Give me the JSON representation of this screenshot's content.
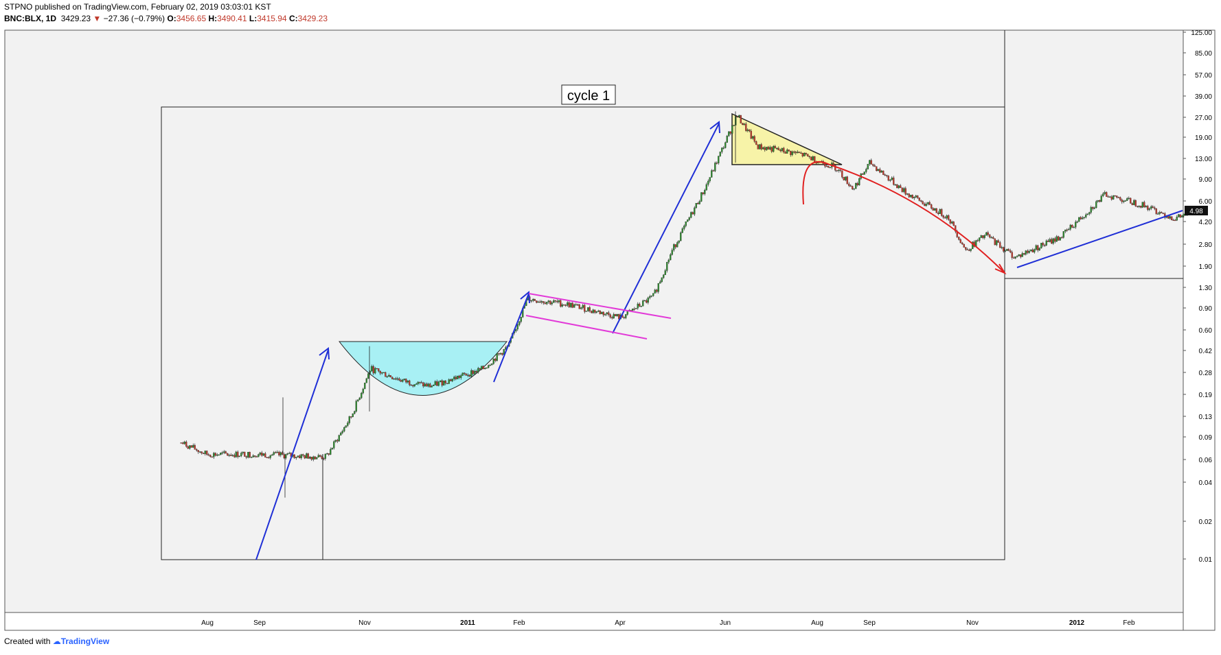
{
  "header": {
    "publisher": "STPNO published on TradingView.com, February 02, 2019 03:03:01 KST",
    "symbol": "BNC:BLX, 1D",
    "last": "3429.23",
    "change": "−27.36 (−0.79%)",
    "o_label": "O:",
    "o_value": "3456.65",
    "h_label": "H:",
    "h_value": "3490.41",
    "l_label": "L:",
    "l_value": "3415.94",
    "c_label": "C:",
    "c_value": "3429.23"
  },
  "footer": {
    "created_with": "Created with",
    "brand": "TradingView"
  },
  "colors": {
    "up_candle": "#2e8b2e",
    "down_candle": "#c0392b",
    "cup_fill": "#a8f0f4",
    "triangle_fill": "#f7f3a8",
    "arrow_blue": "#1f2fd6",
    "flag_magenta": "#e23ad8",
    "decline_red": "#e02020"
  },
  "chart_data": {
    "type": "candlestick",
    "y_scale": "log",
    "y_ticks": [
      "125.00",
      "85.00",
      "57.00",
      "39.00",
      "27.00",
      "19.00",
      "13.00",
      "9.00",
      "6.00",
      "4.20",
      "2.80",
      "1.90",
      "1.30",
      "0.90",
      "0.60",
      "0.42",
      "0.28",
      "0.19",
      "0.13",
      "0.09",
      "0.06",
      "0.04",
      "0.02",
      "0.01"
    ],
    "x_ticks": [
      "Aug",
      "Sep",
      "Nov",
      "2011",
      "Feb",
      "Apr",
      "Jun",
      "Aug",
      "Sep",
      "Nov",
      "2012",
      "Feb"
    ],
    "last_price_label": "4.98",
    "annotation": "cycle 1",
    "approx_price_path": [
      [
        "2010-07-17",
        0.08
      ],
      [
        "2010-08-01",
        0.065
      ],
      [
        "2010-09-01",
        0.065
      ],
      [
        "2010-10-10",
        0.062
      ],
      [
        "2010-10-25",
        0.13
      ],
      [
        "2010-11-05",
        0.3
      ],
      [
        "2010-11-25",
        0.24
      ],
      [
        "2010-12-10",
        0.22
      ],
      [
        "2011-01-10",
        0.3
      ],
      [
        "2011-01-25",
        0.45
      ],
      [
        "2011-02-05",
        1.05
      ],
      [
        "2011-03-01",
        0.95
      ],
      [
        "2011-04-01",
        0.75
      ],
      [
        "2011-04-20",
        1.1
      ],
      [
        "2011-05-01",
        2.5
      ],
      [
        "2011-05-20",
        7.5
      ],
      [
        "2011-06-08",
        28.0
      ],
      [
        "2011-06-20",
        16.0
      ],
      [
        "2011-07-15",
        14.0
      ],
      [
        "2011-08-05",
        11.0
      ],
      [
        "2011-08-15",
        7.5
      ],
      [
        "2011-08-25",
        12.0
      ],
      [
        "2011-09-15",
        7.0
      ],
      [
        "2011-10-10",
        4.5
      ],
      [
        "2011-10-20",
        2.5
      ],
      [
        "2011-11-01",
        3.3
      ],
      [
        "2011-11-18",
        2.2
      ],
      [
        "2011-12-15",
        3.2
      ],
      [
        "2012-01-10",
        6.8
      ],
      [
        "2012-02-01",
        5.6
      ],
      [
        "2012-02-20",
        4.4
      ],
      [
        "2012-03-01",
        4.98
      ]
    ]
  }
}
